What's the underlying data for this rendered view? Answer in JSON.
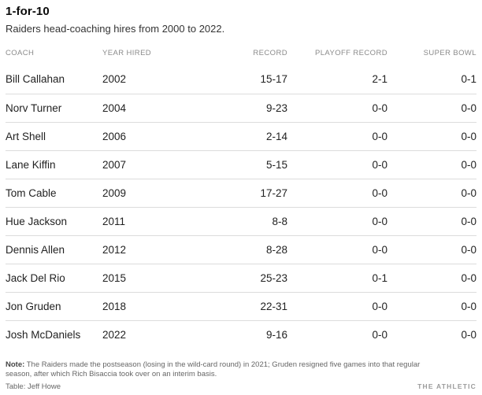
{
  "header": {
    "title": "1-for-10",
    "subtitle": "Raiders head-coaching hires from 2000 to 2022."
  },
  "table": {
    "columns": [
      {
        "key": "coach",
        "label": "COACH",
        "align": "left"
      },
      {
        "key": "year_hired",
        "label": "YEAR HIRED",
        "align": "left"
      },
      {
        "key": "record",
        "label": "RECORD",
        "align": "right"
      },
      {
        "key": "playoff_record",
        "label": "PLAYOFF RECORD",
        "align": "right"
      },
      {
        "key": "super_bowl",
        "label": "SUPER BOWL",
        "align": "right"
      }
    ],
    "rows": [
      {
        "coach": "Bill Callahan",
        "year_hired": "2002",
        "record": "15-17",
        "playoff_record": "2-1",
        "super_bowl": "0-1"
      },
      {
        "coach": "Norv Turner",
        "year_hired": "2004",
        "record": "9-23",
        "playoff_record": "0-0",
        "super_bowl": "0-0"
      },
      {
        "coach": "Art Shell",
        "year_hired": "2006",
        "record": "2-14",
        "playoff_record": "0-0",
        "super_bowl": "0-0"
      },
      {
        "coach": "Lane Kiffin",
        "year_hired": "2007",
        "record": "5-15",
        "playoff_record": "0-0",
        "super_bowl": "0-0"
      },
      {
        "coach": "Tom Cable",
        "year_hired": "2009",
        "record": "17-27",
        "playoff_record": "0-0",
        "super_bowl": "0-0"
      },
      {
        "coach": "Hue Jackson",
        "year_hired": "2011",
        "record": "8-8",
        "playoff_record": "0-0",
        "super_bowl": "0-0"
      },
      {
        "coach": "Dennis Allen",
        "year_hired": "2012",
        "record": "8-28",
        "playoff_record": "0-0",
        "super_bowl": "0-0"
      },
      {
        "coach": "Jack Del Rio",
        "year_hired": "2015",
        "record": "25-23",
        "playoff_record": "0-1",
        "super_bowl": "0-0"
      },
      {
        "coach": "Jon Gruden",
        "year_hired": "2018",
        "record": "22-31",
        "playoff_record": "0-0",
        "super_bowl": "0-0"
      },
      {
        "coach": "Josh McDaniels",
        "year_hired": "2022",
        "record": "9-16",
        "playoff_record": "0-0",
        "super_bowl": "0-0"
      }
    ]
  },
  "footer": {
    "note_label": "Note:",
    "note_text": " The Raiders made the postseason (losing in the wild-card round) in 2021; Gruden resigned five games into that regular season, after which Rich Bisaccia took over on an interim basis.",
    "credit": "Table: Jeff Howe",
    "brand": "THE ATHLETIC"
  },
  "colors": {
    "background": "#ffffff",
    "title_text": "#0b0b0b",
    "body_text": "#222222",
    "header_text": "#8a8a8a",
    "muted_text": "#666666",
    "brand_text": "#9b9b9b",
    "divider": "#dcdcdc"
  }
}
